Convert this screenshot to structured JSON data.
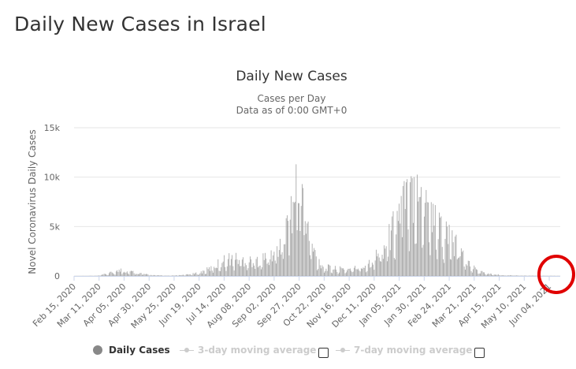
{
  "page": {
    "title": "Daily New Cases in Israel"
  },
  "chart_data": {
    "type": "bar",
    "title": "Daily New Cases",
    "subtitle_line1": "Cases per Day",
    "subtitle_line2": "Data as of 0:00 GMT+0",
    "ylabel": "Novel Coronavirus Daily Cases",
    "xlabel": "",
    "ylim": [
      0,
      15000
    ],
    "yticks": [
      {
        "value": 0,
        "label": "0"
      },
      {
        "value": 5000,
        "label": "5k"
      },
      {
        "value": 10000,
        "label": "10k"
      },
      {
        "value": 15000,
        "label": "15k"
      }
    ],
    "xticks": [
      "Feb 15, 2020",
      "Mar 11, 2020",
      "Apr 05, 2020",
      "Apr 30, 2020",
      "May 25, 2020",
      "Jun 19, 2020",
      "Jul 14, 2020",
      "Aug 08, 2020",
      "Sep 02, 2020",
      "Sep 27, 2020",
      "Oct 22, 2020",
      "Nov 16, 2020",
      "Dec 11, 2020",
      "Jan 05, 2021",
      "Jan 30, 2021",
      "Feb 24, 2021",
      "Mar 21, 2021",
      "Apr 15, 2021",
      "May 10, 2021",
      "Jun 04, 2021"
    ],
    "x_start": "Feb 15, 2020",
    "x_end": "Jun 15, 2021",
    "series_color": "#999999",
    "profile": [
      [
        "Feb 15, 2020",
        0
      ],
      [
        "Mar 10, 2020",
        20
      ],
      [
        "Mar 20, 2020",
        250
      ],
      [
        "Apr 01, 2020",
        550
      ],
      [
        "Apr 10, 2020",
        480
      ],
      [
        "Apr 20, 2020",
        300
      ],
      [
        "Apr 30, 2020",
        100
      ],
      [
        "May 20, 2020",
        20
      ],
      [
        "Jun 05, 2020",
        100
      ],
      [
        "Jun 19, 2020",
        300
      ],
      [
        "Jul 01, 2020",
        800
      ],
      [
        "Jul 10, 2020",
        1400
      ],
      [
        "Jul 20, 2020",
        1800
      ],
      [
        "Aug 01, 2020",
        1700
      ],
      [
        "Aug 15, 2020",
        1500
      ],
      [
        "Sep 01, 2020",
        2200
      ],
      [
        "Sep 10, 2020",
        3500
      ],
      [
        "Sep 20, 2020",
        6500
      ],
      [
        "Sep 24, 2020",
        8000
      ],
      [
        "Oct 01, 2020",
        7000
      ],
      [
        "Oct 08, 2020",
        3500
      ],
      [
        "Oct 15, 2020",
        1800
      ],
      [
        "Oct 22, 2020",
        900
      ],
      [
        "Nov 05, 2020",
        700
      ],
      [
        "Nov 20, 2020",
        750
      ],
      [
        "Dec 01, 2020",
        1000
      ],
      [
        "Dec 15, 2020",
        2200
      ],
      [
        "Dec 25, 2020",
        3600
      ],
      [
        "Jan 05, 2021",
        6500
      ],
      [
        "Jan 15, 2021",
        8500
      ],
      [
        "Jan 25, 2021",
        8000
      ],
      [
        "Feb 05, 2021",
        6500
      ],
      [
        "Feb 15, 2021",
        4800
      ],
      [
        "Feb 25, 2021",
        3800
      ],
      [
        "Mar 05, 2021",
        2800
      ],
      [
        "Mar 15, 2021",
        1300
      ],
      [
        "Mar 25, 2021",
        500
      ],
      [
        "Apr 05, 2021",
        200
      ],
      [
        "Apr 20, 2021",
        80
      ],
      [
        "May 10, 2021",
        30
      ],
      [
        "Jun 15, 2021",
        10
      ]
    ],
    "spikes": [
      [
        "Apr 02, 2020",
        750
      ],
      [
        "Jul 14, 2020",
        2100
      ],
      [
        "Sep 18, 2020",
        5700
      ],
      [
        "Sep 22, 2020",
        7400
      ],
      [
        "Sep 24, 2020",
        11300
      ],
      [
        "Sep 30, 2020",
        9300
      ],
      [
        "Oct 01, 2020",
        8900
      ],
      [
        "Oct 06, 2020",
        5500
      ],
      [
        "Dec 28, 2020",
        4600
      ],
      [
        "Jan 07, 2021",
        8100
      ],
      [
        "Jan 10, 2021",
        9600
      ],
      [
        "Jan 13, 2021",
        9800
      ],
      [
        "Jan 17, 2021",
        10100
      ],
      [
        "Jan 18, 2021",
        9900
      ],
      [
        "Jan 20, 2021",
        10000
      ],
      [
        "Jan 27, 2021",
        9000
      ],
      [
        "Feb 01, 2021",
        8700
      ],
      [
        "Feb 08, 2021",
        7300
      ],
      [
        "Feb 15, 2021",
        5900
      ],
      [
        "Feb 22, 2021",
        5000
      ],
      [
        "Mar 02, 2021",
        4000
      ],
      [
        "Mar 08, 2021",
        2800
      ]
    ],
    "legend": [
      {
        "label": "Daily Cases",
        "active": true
      },
      {
        "label": "3-day moving average",
        "active": false
      },
      {
        "label": "7-day moving average",
        "active": false
      }
    ]
  }
}
